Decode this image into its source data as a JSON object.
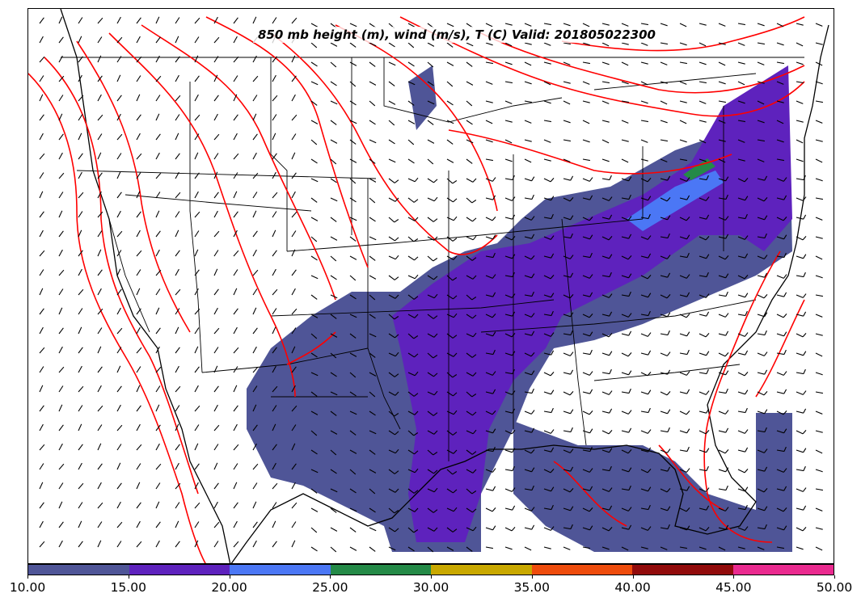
{
  "title": "850 mb height (m), wind (m/s), T (C) Valid: 201805022300",
  "colorbar": {
    "ticks": [
      "10.00",
      "15.00",
      "20.00",
      "25.00",
      "30.00",
      "35.00",
      "40.00",
      "45.00",
      "50.00"
    ],
    "colors": [
      "#4f5597",
      "#5e22bd",
      "#4b77f5",
      "#248a47",
      "#c9a800",
      "#ee4c0c",
      "#920b0b",
      "#ea2a8f"
    ]
  },
  "map_colors": {
    "temperature_contours": "#ff0000",
    "borders": "#000000",
    "wind_barbs": "#000000"
  }
}
